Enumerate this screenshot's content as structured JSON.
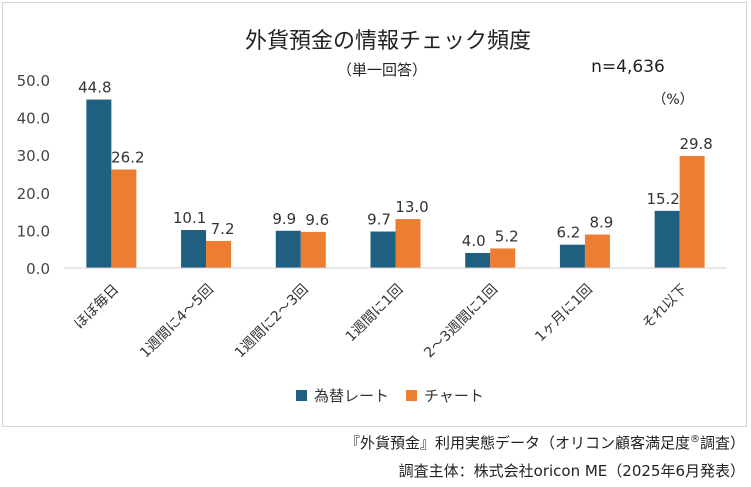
{
  "chart_data": {
    "type": "bar",
    "title": "外貨預金の情報チェック頻度",
    "subtitle": "（単一回答）",
    "sample_size": "n=4,636",
    "unit": "（%）",
    "categories": [
      "ほぼ毎日",
      "1週間に4～5回",
      "1週間に2～3回",
      "1週間に1回",
      "2～3週間に1回",
      "1ヶ月に1回",
      "それ以下"
    ],
    "series": [
      {
        "name": "為替レート",
        "color": "#1f5f7f",
        "values": [
          44.8,
          10.1,
          9.9,
          9.7,
          4.0,
          6.2,
          15.2
        ]
      },
      {
        "name": "チャート",
        "color": "#ed7d31",
        "values": [
          26.2,
          7.2,
          9.6,
          13.0,
          5.2,
          8.9,
          29.8
        ]
      }
    ],
    "ylim": [
      0,
      50
    ],
    "yticks": [
      "0.0",
      "10.0",
      "20.0",
      "30.0",
      "40.0",
      "50.0"
    ],
    "xlabel": "",
    "ylabel": "",
    "grid": false,
    "legend": "bottom-center"
  },
  "footer": {
    "source_prefix": "『外貨預金』利用実態データ（オリコン顧客満足度",
    "registered_mark": "®",
    "source_suffix": "調査）",
    "publisher": "調査主体：株式会社oricon ME（2025年6月発表）"
  }
}
